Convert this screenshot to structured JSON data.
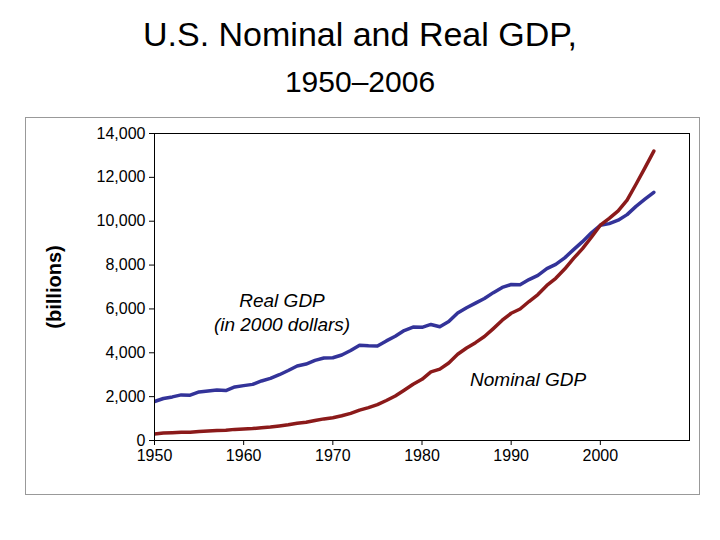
{
  "chart_data": {
    "type": "line",
    "title": "U.S. Nominal and Real GDP,",
    "subtitle": "1950–2006",
    "y_label": "(billions)",
    "x": [
      1950,
      1951,
      1952,
      1953,
      1954,
      1955,
      1956,
      1957,
      1958,
      1959,
      1960,
      1961,
      1962,
      1963,
      1964,
      1965,
      1966,
      1967,
      1968,
      1969,
      1970,
      1971,
      1972,
      1973,
      1974,
      1975,
      1976,
      1977,
      1978,
      1979,
      1980,
      1981,
      1982,
      1983,
      1984,
      1985,
      1986,
      1987,
      1988,
      1989,
      1990,
      1991,
      1992,
      1993,
      1994,
      1995,
      1996,
      1997,
      1998,
      1999,
      2000,
      2001,
      2002,
      2003,
      2004,
      2005,
      2006
    ],
    "series": [
      {
        "name": "Real GDP\n(in 2000 dollars)",
        "color": "#333399",
        "label_at": [
          1964.3,
          5900
        ],
        "values": [
          1777,
          1915,
          1988,
          2080,
          2065,
          2213,
          2256,
          2301,
          2279,
          2441,
          2502,
          2560,
          2715,
          2834,
          2999,
          3191,
          3399,
          3485,
          3653,
          3765,
          3772,
          3899,
          4105,
          4342,
          4320,
          4311,
          4541,
          4751,
          5015,
          5173,
          5162,
          5292,
          5189,
          5424,
          5814,
          6054,
          6264,
          6475,
          6743,
          6981,
          7113,
          7101,
          7337,
          7533,
          7836,
          8032,
          8329,
          8704,
          9067,
          9470,
          9817,
          9891,
          10049,
          10301,
          10676,
          11003,
          11319
        ]
      },
      {
        "name": "Nominal GDP",
        "color": "#8b1a1a",
        "label_at": [
          1991.9,
          2830
        ],
        "values": [
          294,
          339,
          358,
          379,
          380,
          415,
          438,
          461,
          467,
          507,
          526,
          545,
          586,
          618,
          664,
          719,
          788,
          833,
          910,
          985,
          1039,
          1127,
          1238,
          1383,
          1500,
          1638,
          1825,
          2031,
          2295,
          2563,
          2790,
          3128,
          3255,
          3537,
          3933,
          4220,
          4463,
          4740,
          5104,
          5484,
          5803,
          5996,
          6338,
          6657,
          7072,
          7398,
          7817,
          8304,
          8747,
          9268,
          9817,
          10128,
          10470,
          10961,
          11686,
          12434,
          13195
        ]
      }
    ],
    "xlim": [
      1950,
      2010
    ],
    "xticks": [
      1950,
      1960,
      1970,
      1980,
      1990,
      2000
    ],
    "ylim": [
      0,
      14000
    ],
    "yticks": [
      0,
      {
        "value": 2000,
        "label": "2,000"
      },
      {
        "value": 4000,
        "label": "4,000"
      },
      {
        "value": 6000,
        "label": "6,000"
      },
      {
        "value": 8000,
        "label": "8,000"
      },
      {
        "value": 10000,
        "label": "10,000"
      },
      {
        "value": 12000,
        "label": "12,000"
      },
      {
        "value": 14000,
        "label": "14,000"
      }
    ],
    "grid": false
  }
}
